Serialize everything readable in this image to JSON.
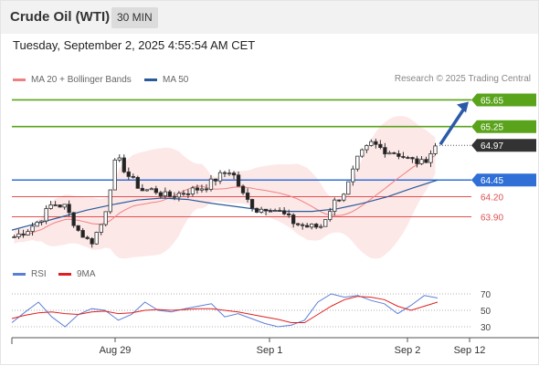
{
  "header": {
    "title": "Crude Oil (WTI)",
    "interval": "30 MIN"
  },
  "timestamp": "Tuesday, September 2, 2025 4:55:54 AM CET",
  "copyright": "Research © 2025 Trading Central",
  "colors": {
    "ma20": "#f08080",
    "ma50": "#2a5a9a",
    "bands": "#fde2e2",
    "resistance": "#5aa41c",
    "pivot": "#2f6fd6",
    "support": "#e05050",
    "price": "#333333",
    "rsi": "#5b7fd6",
    "rsi_ma": "#e02020"
  },
  "chart_data": [
    {
      "type": "candlestick",
      "legend": [
        {
          "label": "MA 20 + Bollinger Bands",
          "color": "#f08080"
        },
        {
          "label": "MA 50",
          "color": "#2a5a9a"
        }
      ],
      "ylim": [
        63.36,
        65.82
      ],
      "x_ticks": [
        "Aug 29",
        "Sep 1",
        "Sep 2",
        "Sep 12"
      ],
      "levels": [
        {
          "label": "65.65",
          "value": 65.65,
          "kind": "resistance"
        },
        {
          "label": "65.25",
          "value": 65.25,
          "kind": "resistance"
        },
        {
          "label": "64.97",
          "value": 64.97,
          "kind": "last"
        },
        {
          "label": "64.45",
          "value": 64.45,
          "kind": "pivot"
        },
        {
          "label": "64.20",
          "value": 64.2,
          "kind": "support"
        },
        {
          "label": "63.90",
          "value": 63.9,
          "kind": "support"
        }
      ],
      "price_path": [
        63.6,
        63.7,
        63.85,
        64.1,
        64.05,
        63.7,
        63.5,
        63.85,
        64.8,
        64.5,
        64.3,
        64.3,
        64.2,
        64.25,
        64.3,
        64.35,
        64.5,
        64.6,
        64.2,
        64.0,
        64.05,
        63.95,
        63.8,
        63.75,
        63.75,
        64.1,
        64.3,
        64.8,
        65.0,
        64.9,
        64.85,
        64.75,
        64.7,
        64.95
      ],
      "ma50_path": [
        63.7,
        63.8,
        63.9,
        64.0,
        64.08,
        64.15,
        64.18,
        64.16,
        64.1,
        64.05,
        64.0,
        63.98,
        63.98,
        64.02,
        64.1,
        64.2,
        64.33,
        64.45
      ],
      "target_arrow": {
        "from": 64.97,
        "to": 65.65
      }
    },
    {
      "type": "line",
      "legend": [
        {
          "label": "RSI",
          "color": "#5b7fd6"
        },
        {
          "label": "9MA",
          "color": "#e02020"
        }
      ],
      "ylim": [
        20,
        80
      ],
      "y_ticks": [
        "70",
        "50",
        "30"
      ],
      "series": [
        {
          "name": "RSI",
          "values": [
            35,
            48,
            60,
            42,
            30,
            45,
            52,
            50,
            38,
            45,
            60,
            50,
            48,
            52,
            55,
            58,
            42,
            46,
            40,
            34,
            30,
            32,
            38,
            60,
            70,
            66,
            68,
            62,
            58,
            46,
            56,
            68,
            65
          ]
        },
        {
          "name": "9MA",
          "values": [
            40,
            44,
            47,
            48,
            46,
            45,
            48,
            49,
            46,
            47,
            50,
            51,
            50,
            51,
            52,
            52,
            50,
            48,
            45,
            42,
            39,
            35,
            35,
            45,
            55,
            63,
            67,
            66,
            63,
            55,
            50,
            55,
            60
          ]
        }
      ]
    }
  ]
}
